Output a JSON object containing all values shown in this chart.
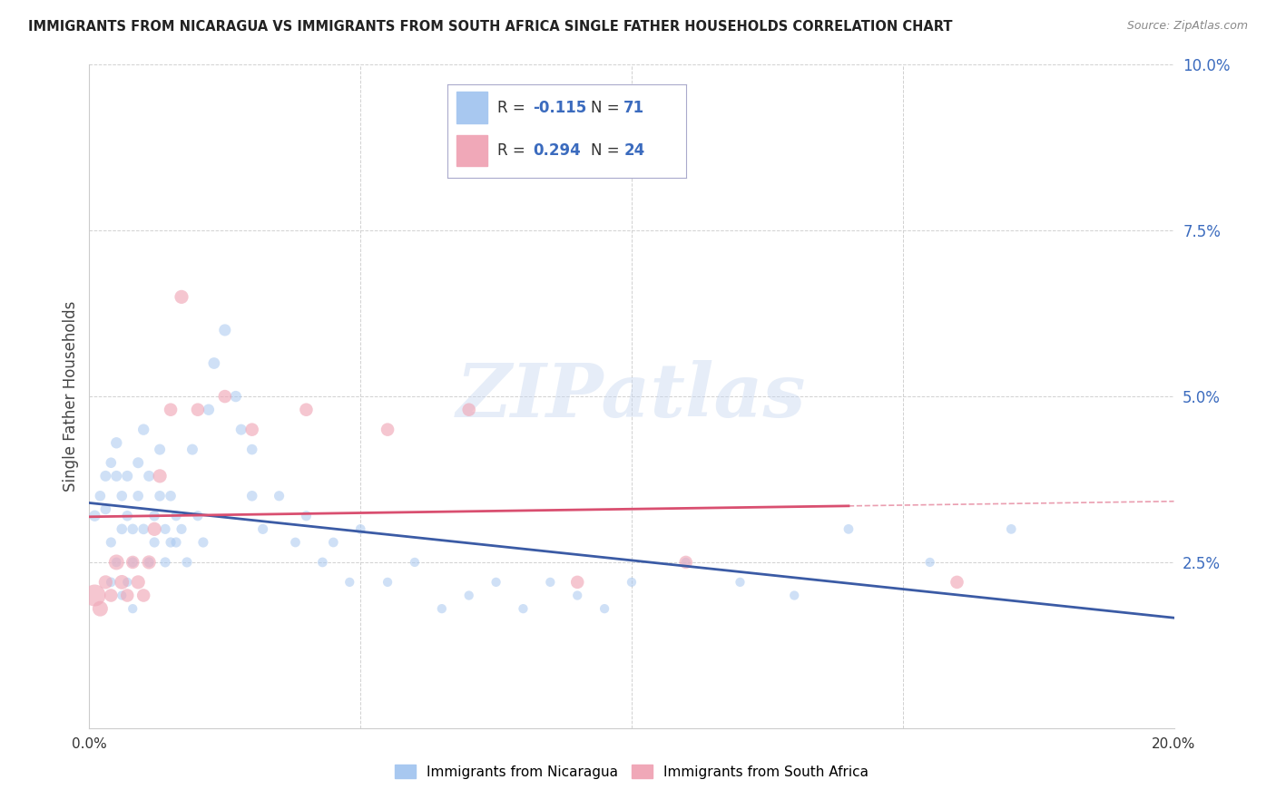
{
  "title": "IMMIGRANTS FROM NICARAGUA VS IMMIGRANTS FROM SOUTH AFRICA SINGLE FATHER HOUSEHOLDS CORRELATION CHART",
  "source": "Source: ZipAtlas.com",
  "ylabel": "Single Father Households",
  "y_ticks": [
    0.0,
    0.025,
    0.05,
    0.075,
    0.1
  ],
  "y_tick_labels": [
    "",
    "2.5%",
    "5.0%",
    "7.5%",
    "10.0%"
  ],
  "x_lim": [
    0.0,
    0.2
  ],
  "y_lim": [
    0.0,
    0.1
  ],
  "x_ticks": [
    0.0,
    0.05,
    0.1,
    0.15,
    0.2
  ],
  "x_tick_labels": [
    "0.0%",
    "",
    "",
    "",
    "20.0%"
  ],
  "legend1_R": "-0.115",
  "legend1_N": "71",
  "legend2_R": "0.294",
  "legend2_N": "24",
  "color_nicaragua": "#A8C8F0",
  "color_south_africa": "#F0A8B8",
  "color_line_nicaragua": "#3B5BA5",
  "color_line_south_africa": "#D94F70",
  "legend_bottom_label1": "Immigrants from Nicaragua",
  "legend_bottom_label2": "Immigrants from South Africa",
  "nicaragua_x": [
    0.001,
    0.002,
    0.003,
    0.003,
    0.004,
    0.004,
    0.005,
    0.005,
    0.006,
    0.006,
    0.007,
    0.007,
    0.008,
    0.008,
    0.009,
    0.009,
    0.01,
    0.01,
    0.011,
    0.011,
    0.012,
    0.012,
    0.013,
    0.013,
    0.014,
    0.014,
    0.015,
    0.015,
    0.016,
    0.016,
    0.017,
    0.018,
    0.019,
    0.02,
    0.021,
    0.022,
    0.023,
    0.025,
    0.027,
    0.028,
    0.03,
    0.03,
    0.032,
    0.035,
    0.038,
    0.04,
    0.043,
    0.045,
    0.048,
    0.05,
    0.055,
    0.06,
    0.065,
    0.07,
    0.075,
    0.08,
    0.085,
    0.09,
    0.095,
    0.1,
    0.11,
    0.12,
    0.13,
    0.14,
    0.155,
    0.17,
    0.004,
    0.005,
    0.006,
    0.007,
    0.008
  ],
  "nicaragua_y": [
    0.032,
    0.035,
    0.033,
    0.038,
    0.04,
    0.028,
    0.038,
    0.043,
    0.03,
    0.035,
    0.032,
    0.038,
    0.025,
    0.03,
    0.04,
    0.035,
    0.045,
    0.03,
    0.025,
    0.038,
    0.032,
    0.028,
    0.042,
    0.035,
    0.03,
    0.025,
    0.028,
    0.035,
    0.032,
    0.028,
    0.03,
    0.025,
    0.042,
    0.032,
    0.028,
    0.048,
    0.055,
    0.06,
    0.05,
    0.045,
    0.042,
    0.035,
    0.03,
    0.035,
    0.028,
    0.032,
    0.025,
    0.028,
    0.022,
    0.03,
    0.022,
    0.025,
    0.018,
    0.02,
    0.022,
    0.018,
    0.022,
    0.02,
    0.018,
    0.022,
    0.025,
    0.022,
    0.02,
    0.03,
    0.025,
    0.03,
    0.022,
    0.025,
    0.02,
    0.022,
    0.018
  ],
  "nicaragua_size": [
    80,
    70,
    70,
    75,
    70,
    65,
    75,
    80,
    70,
    70,
    70,
    75,
    65,
    70,
    75,
    70,
    80,
    70,
    65,
    75,
    70,
    65,
    75,
    70,
    65,
    65,
    65,
    70,
    65,
    65,
    65,
    65,
    75,
    65,
    65,
    80,
    85,
    90,
    80,
    75,
    70,
    70,
    65,
    65,
    60,
    65,
    60,
    60,
    55,
    60,
    55,
    55,
    55,
    55,
    55,
    55,
    55,
    55,
    55,
    55,
    55,
    55,
    55,
    60,
    55,
    60,
    60,
    60,
    55,
    55,
    55
  ],
  "south_africa_x": [
    0.001,
    0.002,
    0.003,
    0.004,
    0.005,
    0.006,
    0.007,
    0.008,
    0.009,
    0.01,
    0.011,
    0.012,
    0.013,
    0.015,
    0.017,
    0.02,
    0.025,
    0.03,
    0.04,
    0.055,
    0.07,
    0.09,
    0.11,
    0.16
  ],
  "south_africa_y": [
    0.02,
    0.018,
    0.022,
    0.02,
    0.025,
    0.022,
    0.02,
    0.025,
    0.022,
    0.02,
    0.025,
    0.03,
    0.038,
    0.048,
    0.065,
    0.048,
    0.05,
    0.045,
    0.048,
    0.045,
    0.048,
    0.022,
    0.025,
    0.022
  ],
  "south_africa_size": [
    300,
    150,
    120,
    110,
    150,
    130,
    110,
    110,
    120,
    110,
    120,
    120,
    120,
    110,
    120,
    110,
    110,
    110,
    110,
    110,
    110,
    110,
    110,
    110
  ],
  "watermark": "ZIPatlas",
  "sa_line_x_end_solid": 0.14,
  "background_color": "#FFFFFF"
}
